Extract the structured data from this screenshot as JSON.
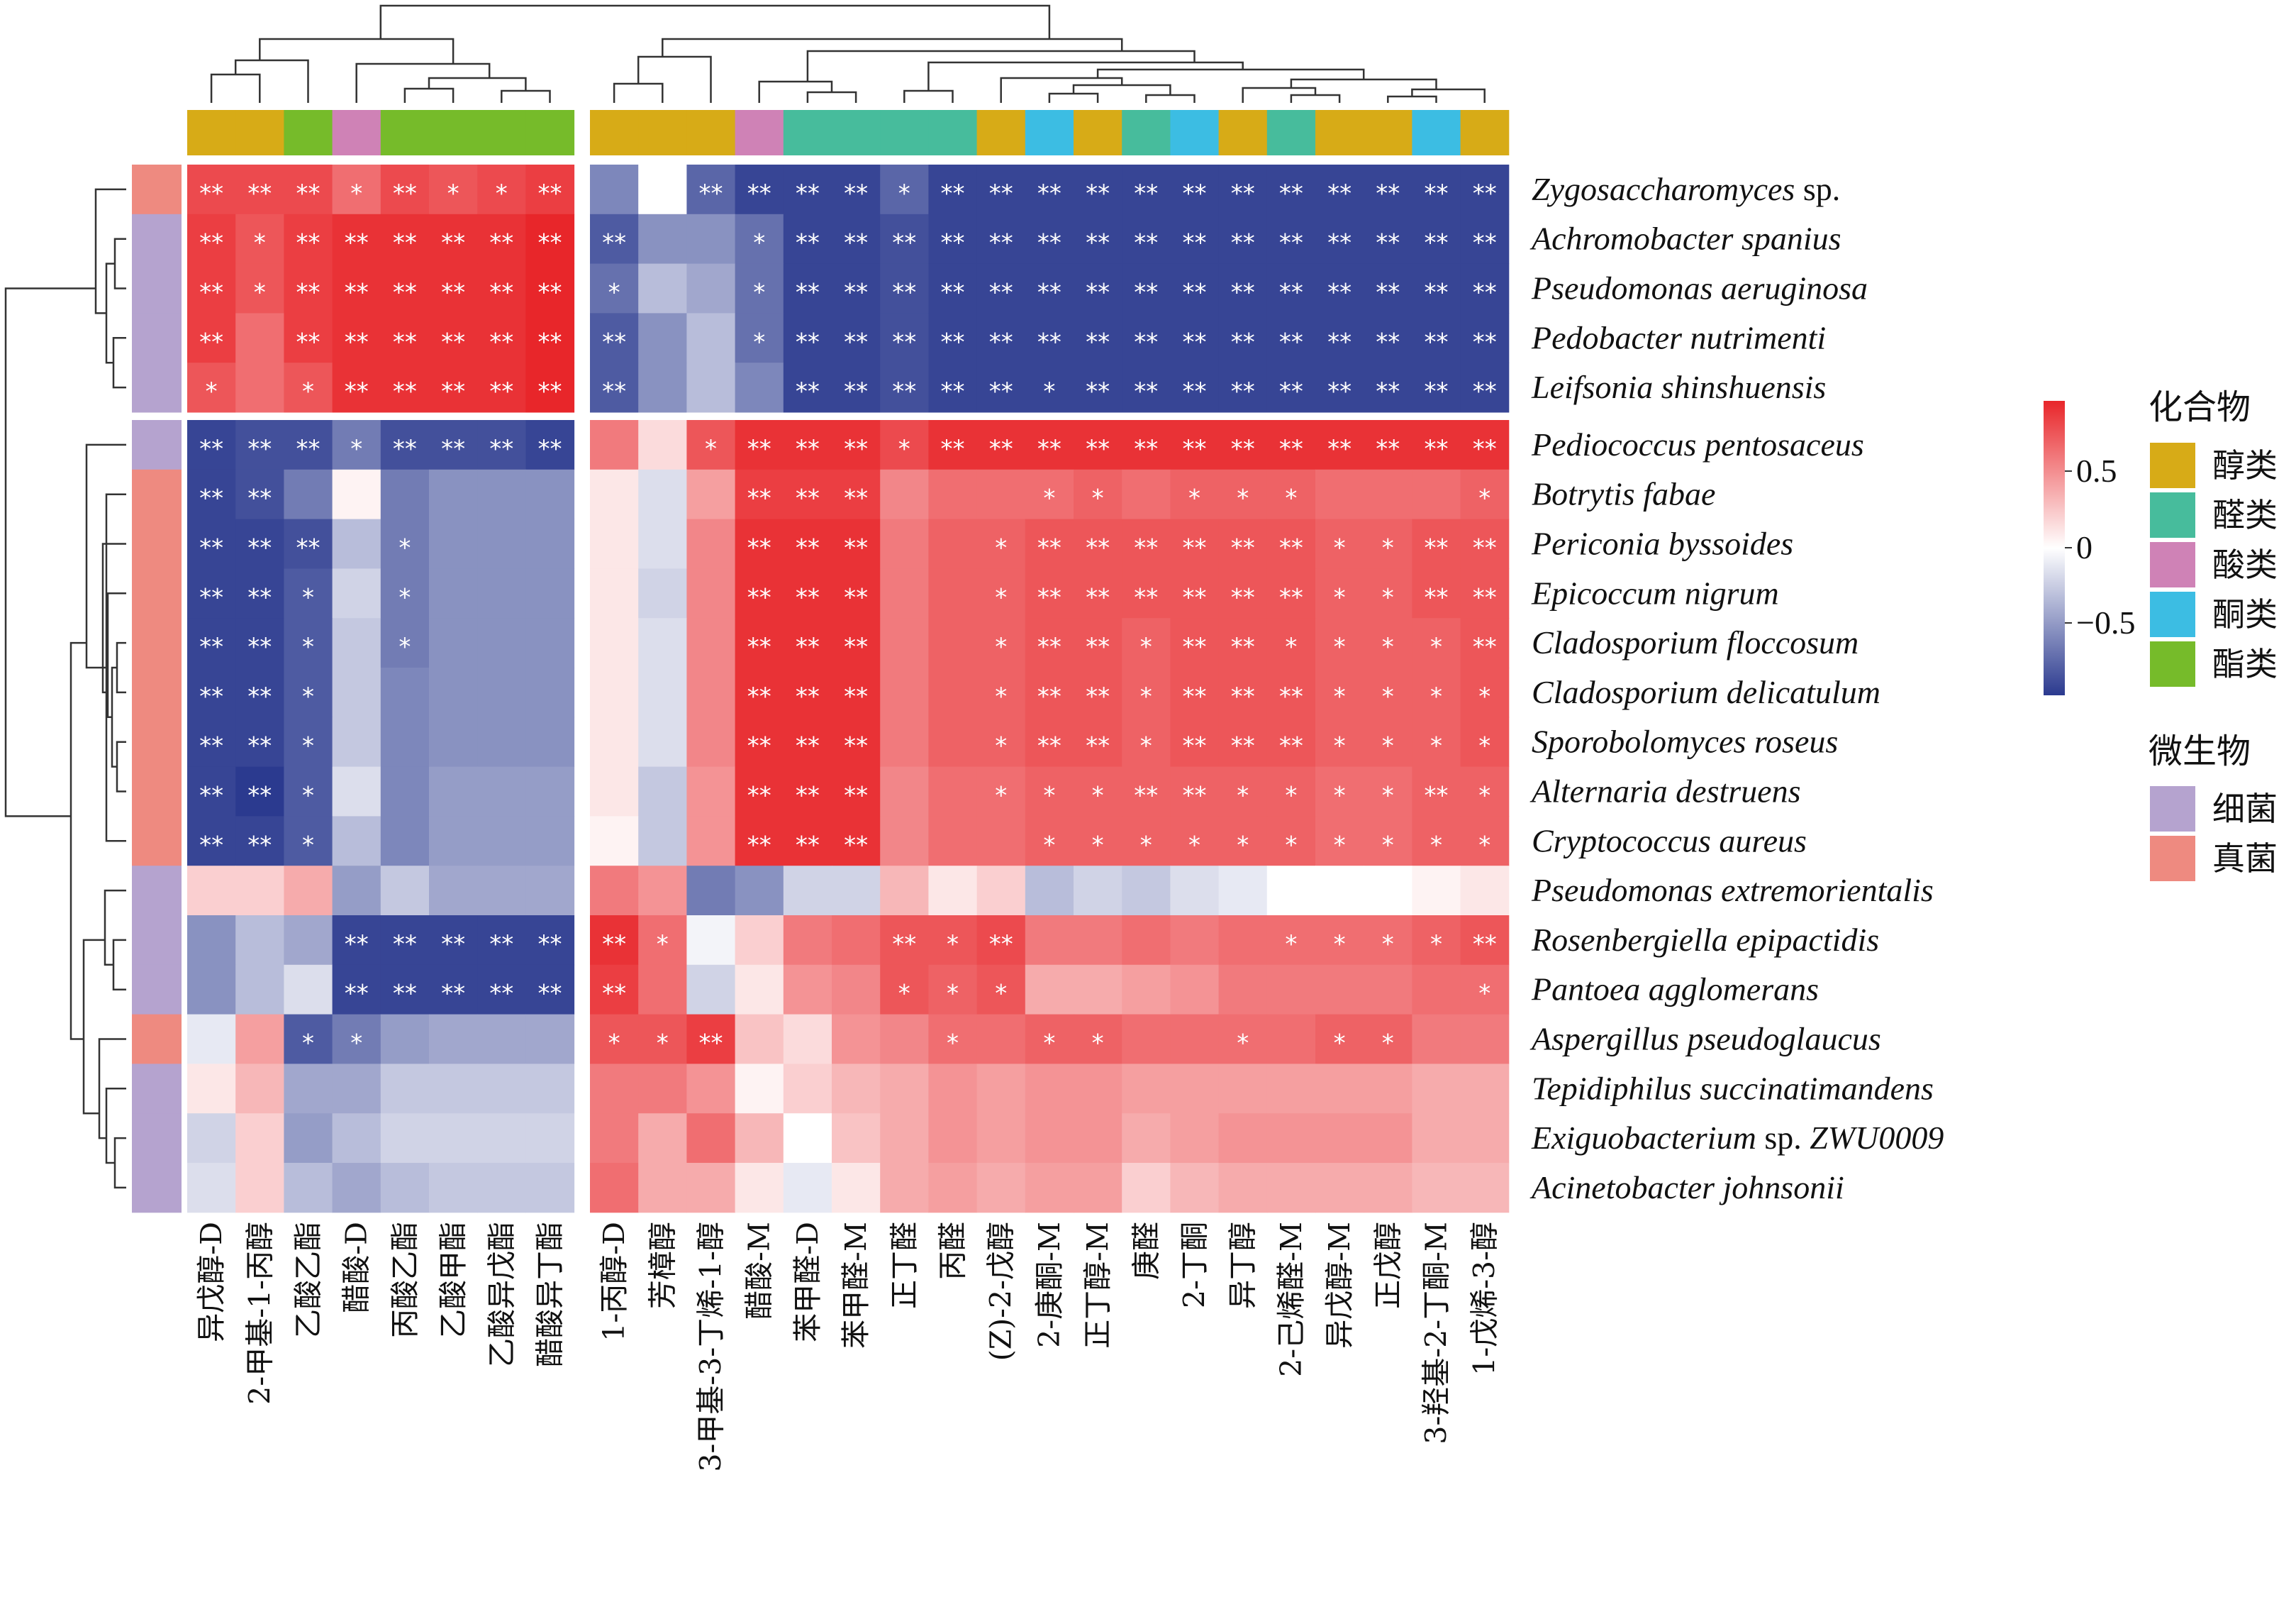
{
  "chart_data": {
    "type": "heatmap",
    "color_scale": {
      "min": -0.9,
      "max": 0.9,
      "low": "#2b3a8f",
      "mid": "#ffffff",
      "high": "#e8262a",
      "ticks": [
        "0.5",
        "0",
        "−0.5"
      ]
    },
    "columns": [
      "异戊醇-D",
      "2-甲基-1-丙醇",
      "乙酸乙酯",
      "醋酸-D",
      "丙酸乙酯",
      "乙酸甲酯",
      "乙酸异戊酯",
      "醋酸异丁酯",
      "1-丙醇-D",
      "芳樟醇",
      "3-甲基-3-丁烯-1-醇",
      "醋酸-M",
      "苯甲醛-D",
      "苯甲醛-M",
      "正丁醛",
      "丙醛",
      "(Z)-2-戊醇",
      "2-庚酮-M",
      "正丁醇-M",
      "庚醛",
      "2-丁酮",
      "异丁醇",
      "2-己烯醛-M",
      "异戊醇-M",
      "正戊醇",
      "3-羟基-2-丁酮-M",
      "1-戊烯-3-醇"
    ],
    "column_groups": [
      "醇类",
      "醇类",
      "酯类",
      "酸类",
      "酯类",
      "酯类",
      "酯类",
      "酯类",
      "醇类",
      "醇类",
      "醇类",
      "酸类",
      "醛类",
      "醛类",
      "醛类",
      "醛类",
      "醇类",
      "酮类",
      "醇类",
      "醛类",
      "酮类",
      "醇类",
      "醛类",
      "醇类",
      "醇类",
      "酮类",
      "醇类"
    ],
    "rows": [
      {
        "name": "Zygosaccharomyces",
        "suffix": " sp.",
        "group": "真菌"
      },
      {
        "name": "Achromobacter spanius",
        "suffix": "",
        "group": "细菌"
      },
      {
        "name": "Pseudomonas aeruginosa",
        "suffix": "",
        "group": "细菌"
      },
      {
        "name": "Pedobacter nutrimenti",
        "suffix": "",
        "group": "细菌"
      },
      {
        "name": "Leifsonia  shinshuensis",
        "suffix": "",
        "group": "细菌"
      },
      {
        "name": "Pediococcus pentosaceus",
        "suffix": "",
        "group": "细菌"
      },
      {
        "name": "Botrytis fabae",
        "suffix": "",
        "group": "真菌"
      },
      {
        "name": "Periconia byssoides",
        "suffix": "",
        "group": "真菌"
      },
      {
        "name": "Epicoccum nigrum",
        "suffix": "",
        "group": "真菌"
      },
      {
        "name": "Cladosporium floccosum",
        "suffix": "",
        "group": "真菌"
      },
      {
        "name": "Cladosporium delicatulum",
        "suffix": "",
        "group": "真菌"
      },
      {
        "name": "Sporobolomyces roseus",
        "suffix": "",
        "group": "真菌"
      },
      {
        "name": "Alternaria destruens",
        "suffix": "",
        "group": "真菌"
      },
      {
        "name": "Cryptococcus aureus",
        "suffix": "",
        "group": "真菌"
      },
      {
        "name": "Pseudomonas extremorientalis",
        "suffix": "",
        "group": "细菌"
      },
      {
        "name": "Rosenbergiella epipactidis",
        "suffix": "",
        "group": "细菌"
      },
      {
        "name": "Pantoea agglomerans",
        "suffix": "",
        "group": "细菌"
      },
      {
        "name": "Aspergillus pseudoglaucus",
        "suffix": "",
        "group": "真菌"
      },
      {
        "name": "Tepidiphilus succinatimandens",
        "suffix": "",
        "group": "细菌"
      },
      {
        "name": "Exiguobacterium",
        "suffix": " sp. ZWU0009",
        "group": "细菌"
      },
      {
        "name": "Acinetobacter johnsonii",
        "suffix": "",
        "group": "细菌"
      }
    ],
    "values": [
      [
        0.75,
        0.75,
        0.75,
        0.6,
        0.75,
        0.7,
        0.75,
        0.8,
        -0.55,
        0.0,
        -0.7,
        -0.85,
        -0.85,
        -0.85,
        -0.7,
        -0.85,
        -0.85,
        -0.85,
        -0.85,
        -0.85,
        -0.85,
        -0.85,
        -0.85,
        -0.85,
        -0.85,
        -0.85,
        -0.85
      ],
      [
        0.8,
        0.7,
        0.8,
        0.85,
        0.85,
        0.85,
        0.85,
        0.9,
        -0.75,
        -0.5,
        -0.5,
        -0.65,
        -0.85,
        -0.85,
        -0.8,
        -0.85,
        -0.85,
        -0.85,
        -0.85,
        -0.85,
        -0.85,
        -0.85,
        -0.85,
        -0.85,
        -0.85,
        -0.85,
        -0.85
      ],
      [
        0.8,
        0.7,
        0.8,
        0.85,
        0.85,
        0.85,
        0.85,
        0.9,
        -0.65,
        -0.3,
        -0.4,
        -0.65,
        -0.85,
        -0.85,
        -0.8,
        -0.85,
        -0.85,
        -0.85,
        -0.85,
        -0.85,
        -0.85,
        -0.85,
        -0.85,
        -0.85,
        -0.85,
        -0.85,
        -0.85
      ],
      [
        0.8,
        0.6,
        0.8,
        0.85,
        0.85,
        0.85,
        0.85,
        0.9,
        -0.75,
        -0.5,
        -0.3,
        -0.65,
        -0.85,
        -0.85,
        -0.8,
        -0.85,
        -0.85,
        -0.85,
        -0.85,
        -0.85,
        -0.85,
        -0.85,
        -0.85,
        -0.85,
        -0.85,
        -0.85,
        -0.85
      ],
      [
        0.7,
        0.6,
        0.7,
        0.85,
        0.85,
        0.85,
        0.85,
        0.9,
        -0.75,
        -0.5,
        -0.3,
        -0.55,
        -0.85,
        -0.85,
        -0.8,
        -0.85,
        -0.85,
        -0.85,
        -0.85,
        -0.85,
        -0.85,
        -0.85,
        -0.85,
        -0.85,
        -0.85,
        -0.85,
        -0.85
      ],
      [
        -0.85,
        -0.8,
        -0.8,
        -0.6,
        -0.8,
        -0.8,
        -0.8,
        -0.85,
        0.55,
        0.15,
        0.7,
        0.85,
        0.85,
        0.85,
        0.75,
        0.85,
        0.85,
        0.85,
        0.85,
        0.85,
        0.85,
        0.85,
        0.85,
        0.85,
        0.85,
        0.85,
        0.85
      ],
      [
        -0.85,
        -0.8,
        -0.6,
        0.05,
        -0.6,
        -0.5,
        -0.5,
        -0.5,
        0.1,
        -0.15,
        0.4,
        0.8,
        0.8,
        0.8,
        0.5,
        0.6,
        0.6,
        0.6,
        0.65,
        0.6,
        0.65,
        0.65,
        0.65,
        0.6,
        0.6,
        0.6,
        0.65
      ],
      [
        -0.85,
        -0.85,
        -0.8,
        -0.3,
        -0.6,
        -0.5,
        -0.5,
        -0.5,
        0.1,
        -0.15,
        0.5,
        0.85,
        0.85,
        0.85,
        0.55,
        0.65,
        0.65,
        0.7,
        0.7,
        0.7,
        0.7,
        0.7,
        0.7,
        0.65,
        0.65,
        0.7,
        0.7
      ],
      [
        -0.85,
        -0.85,
        -0.75,
        -0.2,
        -0.6,
        -0.5,
        -0.5,
        -0.5,
        0.1,
        -0.2,
        0.5,
        0.85,
        0.85,
        0.85,
        0.55,
        0.65,
        0.65,
        0.7,
        0.7,
        0.7,
        0.7,
        0.7,
        0.7,
        0.65,
        0.65,
        0.7,
        0.7
      ],
      [
        -0.85,
        -0.85,
        -0.75,
        -0.25,
        -0.6,
        -0.5,
        -0.5,
        -0.5,
        0.1,
        -0.15,
        0.5,
        0.85,
        0.85,
        0.85,
        0.55,
        0.65,
        0.65,
        0.7,
        0.7,
        0.65,
        0.7,
        0.7,
        0.7,
        0.65,
        0.65,
        0.65,
        0.7
      ],
      [
        -0.85,
        -0.85,
        -0.75,
        -0.25,
        -0.55,
        -0.5,
        -0.5,
        -0.5,
        0.1,
        -0.15,
        0.5,
        0.85,
        0.85,
        0.85,
        0.55,
        0.65,
        0.65,
        0.7,
        0.7,
        0.65,
        0.7,
        0.7,
        0.7,
        0.65,
        0.65,
        0.65,
        0.7
      ],
      [
        -0.85,
        -0.85,
        -0.75,
        -0.25,
        -0.55,
        -0.5,
        -0.5,
        -0.5,
        0.1,
        -0.15,
        0.5,
        0.85,
        0.85,
        0.85,
        0.55,
        0.65,
        0.65,
        0.7,
        0.7,
        0.65,
        0.7,
        0.7,
        0.7,
        0.65,
        0.65,
        0.65,
        0.7
      ],
      [
        -0.85,
        -0.9,
        -0.75,
        -0.15,
        -0.55,
        -0.45,
        -0.45,
        -0.45,
        0.1,
        -0.25,
        0.45,
        0.85,
        0.85,
        0.85,
        0.5,
        0.6,
        0.6,
        0.65,
        0.65,
        0.65,
        0.65,
        0.65,
        0.65,
        0.6,
        0.6,
        0.65,
        0.65
      ],
      [
        -0.85,
        -0.85,
        -0.75,
        -0.3,
        -0.55,
        -0.45,
        -0.45,
        -0.45,
        0.05,
        -0.25,
        0.45,
        0.85,
        0.85,
        0.85,
        0.5,
        0.6,
        0.6,
        0.65,
        0.65,
        0.65,
        0.65,
        0.65,
        0.65,
        0.6,
        0.6,
        0.65,
        0.65
      ],
      [
        0.2,
        0.2,
        0.35,
        -0.45,
        -0.25,
        -0.4,
        -0.4,
        -0.4,
        0.55,
        0.45,
        -0.6,
        -0.5,
        -0.2,
        -0.2,
        0.3,
        0.1,
        0.2,
        -0.3,
        -0.2,
        -0.25,
        -0.15,
        -0.1,
        0.0,
        0.0,
        0.0,
        0.05,
        0.1
      ],
      [
        -0.5,
        -0.3,
        -0.4,
        -0.85,
        -0.85,
        -0.85,
        -0.85,
        -0.85,
        0.85,
        0.6,
        -0.05,
        0.2,
        0.55,
        0.6,
        0.7,
        0.7,
        0.75,
        0.55,
        0.55,
        0.6,
        0.55,
        0.6,
        0.6,
        0.6,
        0.6,
        0.65,
        0.7
      ],
      [
        -0.5,
        -0.3,
        -0.15,
        -0.85,
        -0.85,
        -0.85,
        -0.85,
        -0.85,
        0.8,
        0.6,
        -0.2,
        0.1,
        0.45,
        0.5,
        0.7,
        0.65,
        0.7,
        0.35,
        0.35,
        0.4,
        0.45,
        0.55,
        0.55,
        0.55,
        0.55,
        0.6,
        0.6
      ],
      [
        -0.1,
        0.4,
        -0.75,
        -0.6,
        -0.45,
        -0.4,
        -0.4,
        -0.4,
        0.7,
        0.7,
        0.8,
        0.25,
        0.15,
        0.45,
        0.5,
        0.6,
        0.6,
        0.65,
        0.65,
        0.6,
        0.6,
        0.6,
        0.6,
        0.65,
        0.65,
        0.55,
        0.55
      ],
      [
        0.1,
        0.3,
        -0.4,
        -0.4,
        -0.25,
        -0.25,
        -0.25,
        -0.25,
        0.55,
        0.55,
        0.45,
        0.05,
        0.2,
        0.3,
        0.35,
        0.45,
        0.4,
        0.45,
        0.45,
        0.4,
        0.4,
        0.4,
        0.4,
        0.4,
        0.4,
        0.35,
        0.35
      ],
      [
        -0.2,
        0.2,
        -0.45,
        -0.3,
        -0.2,
        -0.2,
        -0.2,
        -0.2,
        0.55,
        0.35,
        0.6,
        0.3,
        0.0,
        0.25,
        0.35,
        0.45,
        0.4,
        0.45,
        0.45,
        0.35,
        0.4,
        0.45,
        0.45,
        0.45,
        0.45,
        0.35,
        0.35
      ],
      [
        -0.15,
        0.2,
        -0.3,
        -0.4,
        -0.3,
        -0.25,
        -0.25,
        -0.25,
        0.6,
        0.35,
        0.35,
        0.1,
        -0.1,
        0.1,
        0.35,
        0.4,
        0.35,
        0.4,
        0.4,
        0.2,
        0.3,
        0.35,
        0.35,
        0.35,
        0.35,
        0.3,
        0.3
      ]
    ],
    "significance": [
      [
        "**",
        "**",
        "**",
        "*",
        "**",
        "*",
        "*",
        "**",
        "",
        "",
        "**",
        "**",
        "**",
        "**",
        "*",
        "**",
        "**",
        "**",
        "**",
        "**",
        "**",
        "**",
        "**",
        "**",
        "**",
        "**",
        "**"
      ],
      [
        "**",
        "*",
        "**",
        "**",
        "**",
        "**",
        "**",
        "**",
        "**",
        "",
        "",
        "*",
        "**",
        "**",
        "**",
        "**",
        "**",
        "**",
        "**",
        "**",
        "**",
        "**",
        "**",
        "**",
        "**",
        "**",
        "**"
      ],
      [
        "**",
        "*",
        "**",
        "**",
        "**",
        "**",
        "**",
        "**",
        "*",
        "",
        "",
        "*",
        "**",
        "**",
        "**",
        "**",
        "**",
        "**",
        "**",
        "**",
        "**",
        "**",
        "**",
        "**",
        "**",
        "**",
        "**"
      ],
      [
        "**",
        "",
        "**",
        "**",
        "**",
        "**",
        "**",
        "**",
        "**",
        "",
        "",
        "*",
        "**",
        "**",
        "**",
        "**",
        "**",
        "**",
        "**",
        "**",
        "**",
        "**",
        "**",
        "**",
        "**",
        "**",
        "**"
      ],
      [
        "*",
        "",
        "*",
        "**",
        "**",
        "**",
        "**",
        "**",
        "**",
        "",
        "",
        "",
        "**",
        "**",
        "**",
        "**",
        "**",
        "*",
        "**",
        "**",
        "**",
        "**",
        "**",
        "**",
        "**",
        "**",
        "**"
      ],
      [
        "**",
        "**",
        "**",
        "*",
        "**",
        "**",
        "**",
        "**",
        "",
        "",
        "*",
        "**",
        "**",
        "**",
        "*",
        "**",
        "**",
        "**",
        "**",
        "**",
        "**",
        "**",
        "**",
        "**",
        "**",
        "**",
        "**"
      ],
      [
        "**",
        "**",
        "",
        "",
        "",
        "",
        "",
        "",
        "",
        "",
        "",
        "**",
        "**",
        "**",
        "",
        "",
        "",
        "*",
        "*",
        "",
        "*",
        "*",
        "*",
        "",
        "",
        "",
        "*"
      ],
      [
        "**",
        "**",
        "**",
        "",
        "*",
        "",
        "",
        "",
        "",
        "",
        "",
        "**",
        "**",
        "**",
        "",
        "",
        "*",
        "**",
        "**",
        "**",
        "**",
        "**",
        "**",
        "*",
        "*",
        "**",
        "**"
      ],
      [
        "**",
        "**",
        "*",
        "",
        "*",
        "",
        "",
        "",
        "",
        "",
        "",
        "**",
        "**",
        "**",
        "",
        "",
        "*",
        "**",
        "**",
        "**",
        "**",
        "**",
        "**",
        "*",
        "*",
        "**",
        "**"
      ],
      [
        "**",
        "**",
        "*",
        "",
        "*",
        "",
        "",
        "",
        "",
        "",
        "",
        "**",
        "**",
        "**",
        "",
        "",
        "*",
        "**",
        "**",
        "*",
        "**",
        "**",
        "*",
        "*",
        "*",
        "*",
        "**"
      ],
      [
        "**",
        "**",
        "*",
        "",
        "",
        "",
        "",
        "",
        "",
        "",
        "",
        "**",
        "**",
        "**",
        "",
        "",
        "*",
        "**",
        "**",
        "*",
        "**",
        "**",
        "**",
        "*",
        "*",
        "*",
        "*"
      ],
      [
        "**",
        "**",
        "*",
        "",
        "",
        "",
        "",
        "",
        "",
        "",
        "",
        "**",
        "**",
        "**",
        "",
        "",
        "*",
        "**",
        "**",
        "*",
        "**",
        "**",
        "**",
        "*",
        "*",
        "*",
        "*"
      ],
      [
        "**",
        "**",
        "*",
        "",
        "",
        "",
        "",
        "",
        "",
        "",
        "",
        "**",
        "**",
        "**",
        "",
        "",
        "*",
        "*",
        "*",
        "**",
        "**",
        "*",
        "*",
        "*",
        "*",
        "**",
        "*"
      ],
      [
        "**",
        "**",
        "*",
        "",
        "",
        "",
        "",
        "",
        "",
        "",
        "",
        "**",
        "**",
        "**",
        "",
        "",
        "",
        "*",
        "*",
        "*",
        "*",
        "*",
        "*",
        "*",
        "*",
        "*",
        "*"
      ],
      [
        "",
        "",
        "",
        "",
        "",
        "",
        "",
        "",
        "",
        "",
        "",
        "",
        "",
        "",
        "",
        "",
        "",
        "",
        "",
        "",
        "",
        "",
        "",
        "",
        "",
        "",
        ""
      ],
      [
        "",
        "",
        "",
        "**",
        "**",
        "**",
        "**",
        "**",
        "**",
        "*",
        "",
        "",
        "",
        "",
        "**",
        "*",
        "**",
        "",
        "",
        "",
        "",
        "",
        "*",
        "*",
        "*",
        "*",
        "**"
      ],
      [
        "",
        "",
        "",
        "**",
        "**",
        "**",
        "**",
        "**",
        "**",
        "",
        "",
        "",
        "",
        "",
        "*",
        "*",
        "*",
        "",
        "",
        "",
        "",
        "",
        "",
        "",
        "",
        "",
        "*"
      ],
      [
        "",
        "",
        "*",
        "*",
        "",
        "",
        "",
        "",
        "*",
        "*",
        "**",
        "",
        "",
        "",
        "",
        "*",
        "",
        "*",
        "*",
        "",
        "",
        "*",
        "",
        "*",
        "*",
        "",
        ""
      ],
      [
        "",
        "",
        "",
        "",
        "",
        "",
        "",
        "",
        "",
        "",
        "",
        "",
        "",
        "",
        "",
        "",
        "",
        "",
        "",
        "",
        "",
        "",
        "",
        "",
        "",
        "",
        ""
      ],
      [
        "",
        "",
        "",
        "",
        "",
        "",
        "",
        "",
        "",
        "",
        "",
        "",
        "",
        "",
        "",
        "",
        "",
        "",
        "",
        "",
        "",
        "",
        "",
        "",
        "",
        "",
        ""
      ],
      [
        "",
        "",
        "",
        "",
        "",
        "",
        "",
        "",
        "",
        "",
        "",
        "",
        "",
        "",
        "",
        "",
        "",
        "",
        "",
        "",
        "",
        "",
        "",
        "",
        "",
        "",
        ""
      ]
    ],
    "legend": {
      "compound_title": "化合物",
      "compounds": [
        {
          "label": "醇类",
          "color": "#d7ab17"
        },
        {
          "label": "醛类",
          "color": "#47bc9c"
        },
        {
          "label": "酸类",
          "color": "#cf82b6"
        },
        {
          "label": "酮类",
          "color": "#3cbde3"
        },
        {
          "label": "酯类",
          "color": "#76bb2a"
        }
      ],
      "microbe_title": "微生物",
      "microbes": [
        {
          "label": "细菌",
          "color": "#b5a3cf"
        },
        {
          "label": "真菌",
          "color": "#ee8a80"
        }
      ]
    }
  }
}
